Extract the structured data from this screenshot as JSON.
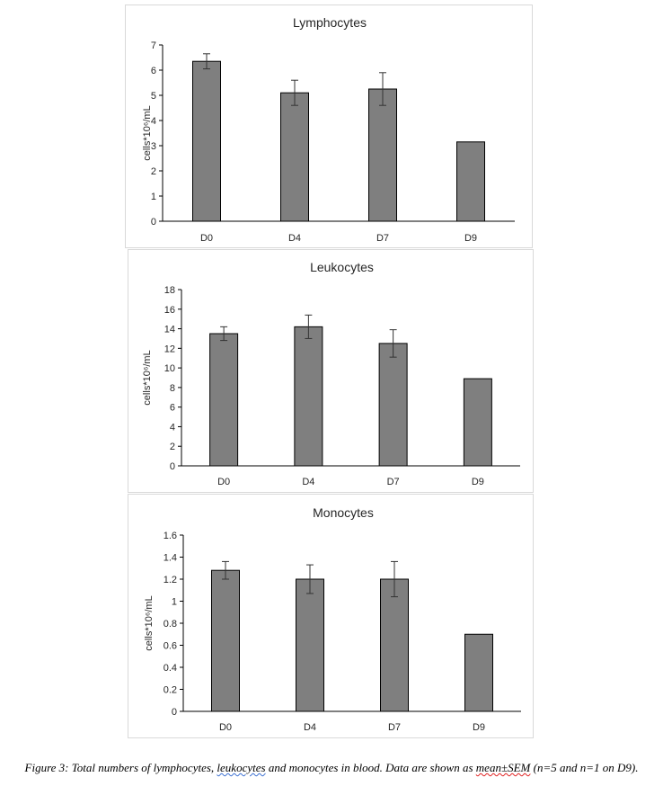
{
  "chart_data": [
    {
      "type": "bar",
      "title": "Lymphocytes",
      "ylabel": "cells*10⁶/mL",
      "xlabel": "",
      "categories": [
        "D0",
        "D4",
        "D7",
        "D9"
      ],
      "values": [
        6.35,
        5.1,
        5.25,
        3.15
      ],
      "errors": [
        0.3,
        0.5,
        0.65,
        0
      ],
      "ylim": [
        0,
        7
      ],
      "yticks": [
        0,
        1,
        2,
        3,
        4,
        5,
        6,
        7
      ],
      "ytick_labels": [
        "0",
        "1",
        "2",
        "3",
        "4",
        "5",
        "6",
        "7"
      ],
      "grid": false,
      "bar_color": "#7f7f7f",
      "edge_color": "#000000"
    },
    {
      "type": "bar",
      "title": "Leukocytes",
      "ylabel": "cells*10⁶/mL",
      "xlabel": "",
      "categories": [
        "D0",
        "D4",
        "D7",
        "D9"
      ],
      "values": [
        13.5,
        14.2,
        12.5,
        8.9
      ],
      "errors": [
        0.7,
        1.2,
        1.4,
        0
      ],
      "ylim": [
        0,
        18
      ],
      "yticks": [
        0,
        2,
        4,
        6,
        8,
        10,
        12,
        14,
        16,
        18
      ],
      "ytick_labels": [
        "0",
        "2",
        "4",
        "6",
        "8",
        "10",
        "12",
        "14",
        "16",
        "18"
      ],
      "grid": false,
      "bar_color": "#7f7f7f",
      "edge_color": "#000000"
    },
    {
      "type": "bar",
      "title": "Monocytes",
      "ylabel": "cells*10⁶/mL",
      "xlabel": "",
      "categories": [
        "D0",
        "D4",
        "D7",
        "D9"
      ],
      "values": [
        1.28,
        1.2,
        1.2,
        0.7
      ],
      "errors": [
        0.08,
        0.13,
        0.16,
        0
      ],
      "ylim": [
        0,
        1.6
      ],
      "yticks": [
        0,
        0.2,
        0.4,
        0.6,
        0.8,
        1,
        1.2,
        1.4,
        1.6
      ],
      "ytick_labels": [
        "0",
        "0.2",
        "0.4",
        "0.6",
        "0.8",
        "1",
        "1.2",
        "1.4",
        "1.6"
      ],
      "grid": false,
      "bar_color": "#7f7f7f",
      "edge_color": "#000000"
    }
  ],
  "caption": {
    "part1": "Figure 3: Total numbers of lymphocytes, ",
    "word1": "leukocytes",
    "part2": " and monocytes in blood. Data are shown as ",
    "word2": "mean±SEM",
    "part3": " (n=5 and n=1 on D9)."
  }
}
